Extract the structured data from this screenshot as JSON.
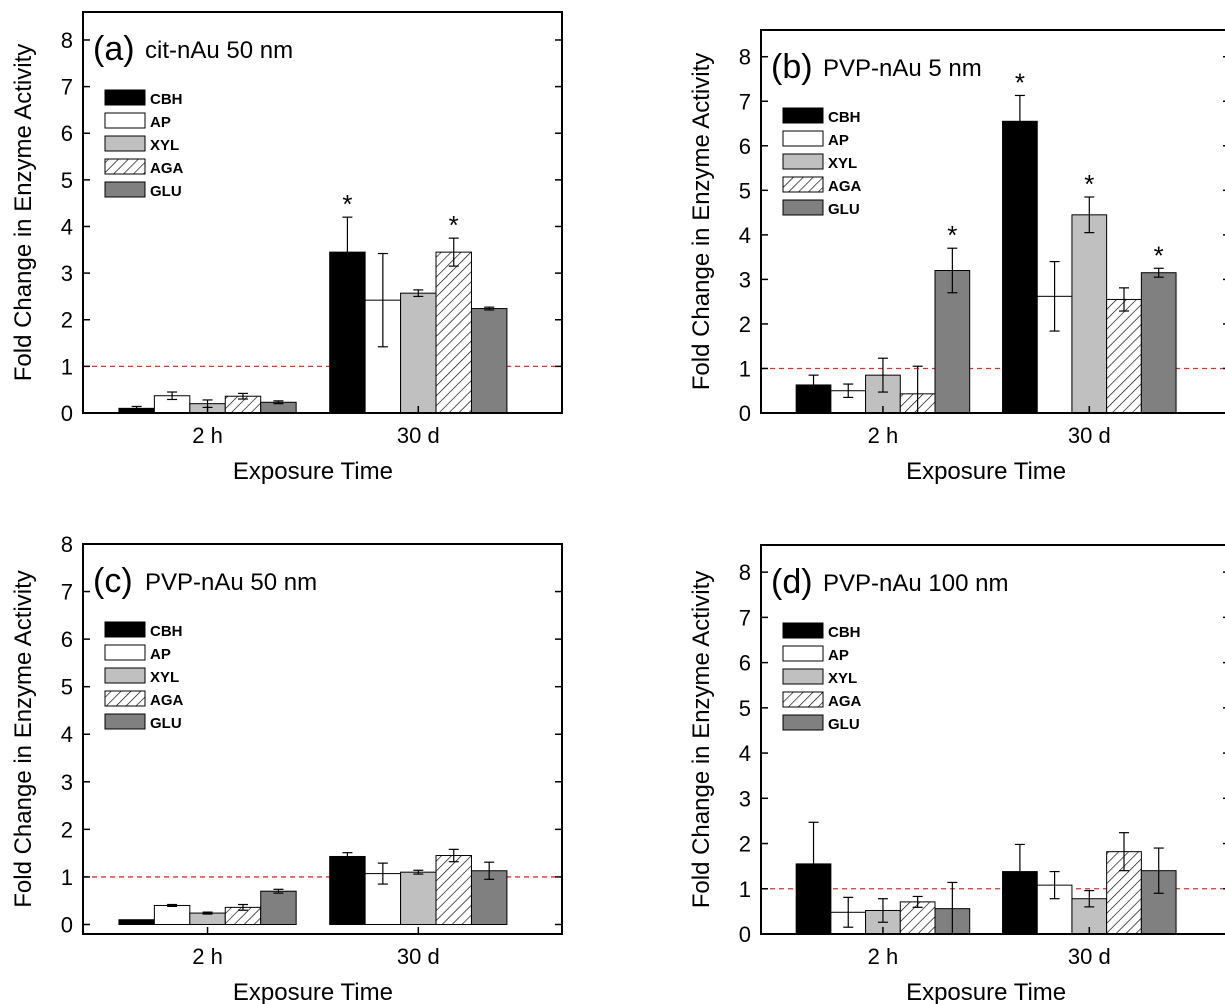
{
  "chart_data": [
    {
      "type": "bar",
      "panel_label": "(a)",
      "title": "cit-nAu 50 nm",
      "xlabel": "Exposure Time",
      "ylabel": "Fold Change in Enzyme Activity",
      "categories": [
        "2 h",
        "30 d"
      ],
      "ylim": [
        0,
        8.6
      ],
      "yticks": [
        "0",
        "1",
        "2",
        "3",
        "4",
        "5",
        "6",
        "7",
        "8"
      ],
      "reference_line": 1,
      "legend_position": "top-left",
      "series": [
        {
          "name": "CBH",
          "values": [
            0.1,
            3.45
          ],
          "errors": [
            0.04,
            0.75
          ],
          "significant": [
            false,
            true
          ]
        },
        {
          "name": "AP",
          "values": [
            0.37,
            2.42
          ],
          "errors": [
            0.08,
            1.0
          ],
          "significant": [
            false,
            false
          ]
        },
        {
          "name": "XYL",
          "values": [
            0.2,
            2.57
          ],
          "errors": [
            0.08,
            0.07
          ],
          "significant": [
            false,
            false
          ]
        },
        {
          "name": "AGA",
          "values": [
            0.36,
            3.45
          ],
          "errors": [
            0.06,
            0.3
          ],
          "significant": [
            false,
            true
          ]
        },
        {
          "name": "GLU",
          "values": [
            0.23,
            2.24
          ],
          "errors": [
            0.03,
            0.03
          ],
          "significant": [
            false,
            false
          ]
        }
      ]
    },
    {
      "type": "bar",
      "panel_label": "(b)",
      "title": "PVP-nAu 5 nm",
      "xlabel": "Exposure Time",
      "ylabel": "Fold Change in Enzyme Activity",
      "categories": [
        "2 h",
        "30 d"
      ],
      "ylim": [
        0,
        8.6
      ],
      "yticks": [
        "0",
        "1",
        "2",
        "3",
        "4",
        "5",
        "6",
        "7",
        "8"
      ],
      "reference_line": 1,
      "legend_position": "top-left",
      "series": [
        {
          "name": "CBH",
          "values": [
            0.63,
            6.55
          ],
          "errors": [
            0.22,
            0.58
          ],
          "significant": [
            false,
            true
          ]
        },
        {
          "name": "AP",
          "values": [
            0.5,
            2.62
          ],
          "errors": [
            0.15,
            0.78
          ],
          "significant": [
            false,
            false
          ]
        },
        {
          "name": "XYL",
          "values": [
            0.85,
            4.45
          ],
          "errors": [
            0.38,
            0.4
          ],
          "significant": [
            false,
            true
          ]
        },
        {
          "name": "AGA",
          "values": [
            0.43,
            2.55
          ],
          "errors": [
            0.62,
            0.26
          ],
          "significant": [
            false,
            false
          ]
        },
        {
          "name": "GLU",
          "values": [
            3.2,
            3.15
          ],
          "errors": [
            0.5,
            0.1
          ],
          "significant": [
            true,
            true
          ]
        }
      ]
    },
    {
      "type": "bar",
      "panel_label": "(c)",
      "title": "PVP-nAu 50 nm",
      "xlabel": "Exposure Time",
      "ylabel": "Fold Change in Enzyme Activity",
      "categories": [
        "2 h",
        "30 d"
      ],
      "ylim": [
        -0.2,
        8.0
      ],
      "yticks": [
        "0",
        "1",
        "2",
        "3",
        "4",
        "5",
        "6",
        "7",
        "8"
      ],
      "reference_line": 1,
      "legend_position": "top-left",
      "series": [
        {
          "name": "CBH",
          "values": [
            0.1,
            1.43
          ],
          "errors": [
            0.0,
            0.08
          ],
          "significant": [
            false,
            false
          ]
        },
        {
          "name": "AP",
          "values": [
            0.4,
            1.07
          ],
          "errors": [
            0.02,
            0.22
          ],
          "significant": [
            false,
            false
          ]
        },
        {
          "name": "XYL",
          "values": [
            0.24,
            1.1
          ],
          "errors": [
            0.02,
            0.04
          ],
          "significant": [
            false,
            false
          ]
        },
        {
          "name": "AGA",
          "values": [
            0.36,
            1.45
          ],
          "errors": [
            0.06,
            0.13
          ],
          "significant": [
            false,
            false
          ]
        },
        {
          "name": "GLU",
          "values": [
            0.7,
            1.13
          ],
          "errors": [
            0.04,
            0.18
          ],
          "significant": [
            false,
            false
          ]
        }
      ]
    },
    {
      "type": "bar",
      "panel_label": "(d)",
      "title": "PVP-nAu 100 nm",
      "xlabel": "Exposure Time",
      "ylabel": "Fold Change in Enzyme Activity",
      "categories": [
        "2 h",
        "30 d"
      ],
      "ylim": [
        0,
        8.6
      ],
      "yticks": [
        "0",
        "1",
        "2",
        "3",
        "4",
        "5",
        "6",
        "7",
        "8"
      ],
      "reference_line": 1,
      "legend_position": "top-left",
      "series": [
        {
          "name": "CBH",
          "values": [
            1.55,
            1.38
          ],
          "errors": [
            0.92,
            0.6
          ],
          "significant": [
            false,
            false
          ]
        },
        {
          "name": "AP",
          "values": [
            0.48,
            1.08
          ],
          "errors": [
            0.33,
            0.3
          ],
          "significant": [
            false,
            false
          ]
        },
        {
          "name": "XYL",
          "values": [
            0.52,
            0.78
          ],
          "errors": [
            0.26,
            0.18
          ],
          "significant": [
            false,
            false
          ]
        },
        {
          "name": "AGA",
          "values": [
            0.71,
            1.82
          ],
          "errors": [
            0.12,
            0.42
          ],
          "significant": [
            false,
            false
          ]
        },
        {
          "name": "GLU",
          "values": [
            0.56,
            1.4
          ],
          "errors": [
            0.58,
            0.5
          ],
          "significant": [
            false,
            false
          ]
        }
      ]
    }
  ]
}
